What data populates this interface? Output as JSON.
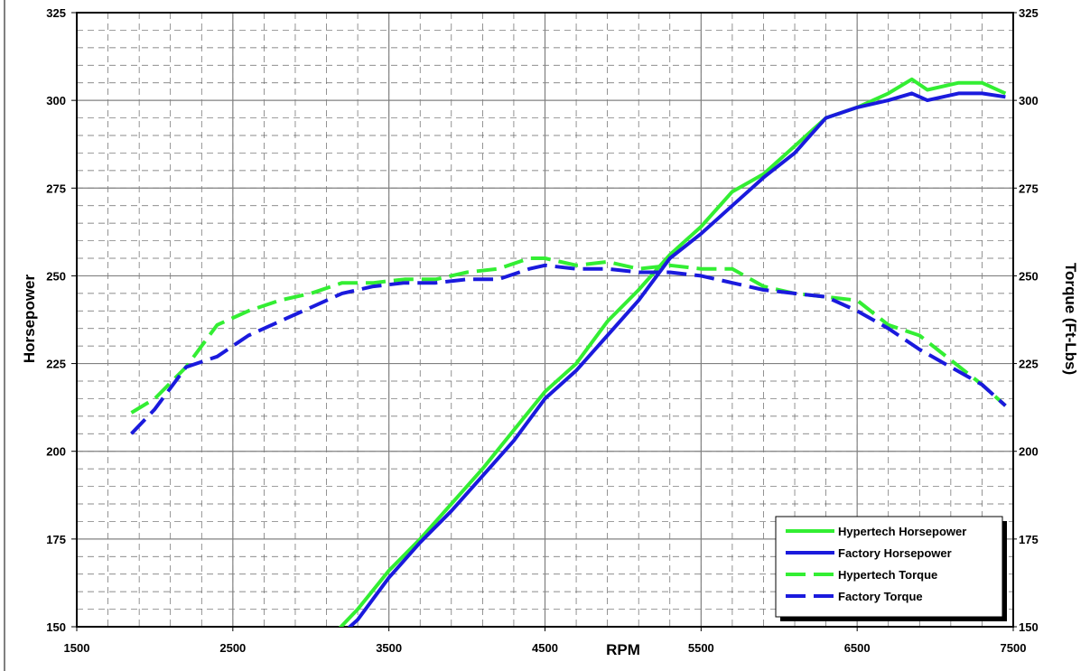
{
  "chart_data": {
    "type": "line",
    "title": "",
    "xlabel": "RPM",
    "ylabel": "Horsepower",
    "y2label": "Torque (Ft-Lbs)",
    "xlim": [
      1500,
      7500
    ],
    "ylim": [
      150,
      325
    ],
    "y2lim": [
      150,
      325
    ],
    "x_ticks": [
      1500,
      2500,
      3500,
      4500,
      5500,
      6500,
      7500
    ],
    "y_ticks": [
      150,
      175,
      200,
      225,
      250,
      275,
      300,
      325
    ],
    "grid": true,
    "legend_position": "bottom-right",
    "series": [
      {
        "name": "Hypertech Horsepower",
        "color": "#33EE33",
        "style": "solid",
        "axis": "left",
        "x": [
          3150,
          3300,
          3500,
          3700,
          3900,
          4100,
          4300,
          4500,
          4700,
          4900,
          5100,
          5300,
          5500,
          5700,
          5900,
          6100,
          6300,
          6500,
          6700,
          6850,
          6950,
          7150,
          7300,
          7450
        ],
        "values": [
          148,
          155,
          166,
          175,
          185,
          195,
          206,
          217,
          225,
          237,
          246,
          256,
          264,
          274,
          279,
          287,
          295,
          298,
          302,
          306,
          303,
          305,
          305,
          302
        ]
      },
      {
        "name": "Factory Horsepower",
        "color": "#1A1ADD",
        "style": "solid",
        "axis": "left",
        "x": [
          3200,
          3300,
          3500,
          3700,
          3900,
          4100,
          4300,
          4500,
          4700,
          4900,
          5100,
          5300,
          5500,
          5700,
          5900,
          6100,
          6300,
          6500,
          6700,
          6850,
          6950,
          7150,
          7300,
          7450
        ],
        "values": [
          148,
          152,
          164,
          174,
          183,
          193,
          203,
          215,
          223,
          233,
          243,
          255,
          262,
          270,
          278,
          285,
          295,
          298,
          300,
          302,
          300,
          302,
          302,
          301
        ]
      },
      {
        "name": "Hypertech Torque",
        "color": "#33EE33",
        "style": "dashed",
        "axis": "right",
        "x": [
          1850,
          2000,
          2200,
          2400,
          2600,
          2800,
          3000,
          3200,
          3400,
          3600,
          3800,
          4000,
          4200,
          4400,
          4500,
          4700,
          4900,
          5100,
          5300,
          5500,
          5700,
          5900,
          6100,
          6300,
          6500,
          6700,
          6900,
          7100,
          7300,
          7450
        ],
        "values": [
          211,
          215,
          224,
          236,
          240,
          243,
          245,
          248,
          248,
          249,
          249,
          251,
          252,
          255,
          255,
          253,
          254,
          252,
          253,
          252,
          252,
          247,
          245,
          244,
          243,
          236,
          233,
          226,
          219,
          213
        ]
      },
      {
        "name": "Factory Torque",
        "color": "#1A1ADD",
        "style": "dashed",
        "axis": "right",
        "x": [
          1850,
          2000,
          2200,
          2400,
          2600,
          2800,
          3000,
          3200,
          3400,
          3600,
          3800,
          4000,
          4200,
          4400,
          4500,
          4700,
          4900,
          5100,
          5300,
          5500,
          5700,
          5900,
          6100,
          6300,
          6500,
          6700,
          6900,
          7100,
          7300,
          7450
        ],
        "values": [
          205,
          212,
          224,
          227,
          233,
          237,
          241,
          245,
          247,
          248,
          248,
          249,
          249,
          252,
          253,
          252,
          252,
          251,
          251,
          250,
          248,
          246,
          245,
          244,
          240,
          235,
          229,
          224,
          219,
          213
        ]
      }
    ]
  }
}
